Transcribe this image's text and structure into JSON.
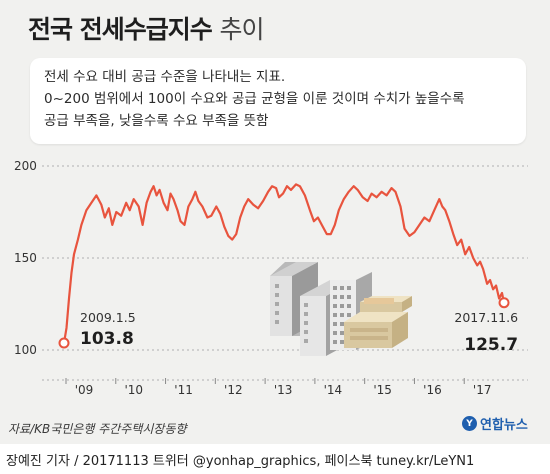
{
  "header": {
    "title_bold": "전국 전세수급지수",
    "title_light": "추이"
  },
  "note": {
    "lines": [
      "전세 수요 대비 공급 수준을 나타내는 지표.",
      "0~200 범위에서 100이 수요와 공급 균형을 이룬 것이며 수치가 높을수록",
      "공급 부족을, 낮을수록 수요 부족을 뜻함"
    ]
  },
  "source": "자료/KB국민은행 주간주택시장동향",
  "logo": {
    "mark": "Y",
    "name": "연합뉴스"
  },
  "footer": "장예진 기자 / 20171113 트위터 @yonhap_graphics, 페이스북 tuney.kr/LeYN1",
  "colors": {
    "line": "#e8543e",
    "grid": "#b0b0b0",
    "background": "#f1f1ef",
    "accent": "#1f5fae"
  },
  "chart_data": {
    "type": "line",
    "title": "전국 전세수급지수 추이",
    "xlabel": "",
    "ylabel": "",
    "ylim": [
      100,
      200
    ],
    "yticks": [
      100,
      150,
      200
    ],
    "xlim": [
      2009.0,
      2018.0
    ],
    "xticks": [
      {
        "x": 2009.0,
        "label": "'09"
      },
      {
        "x": 2010.0,
        "label": "'10"
      },
      {
        "x": 2011.0,
        "label": "'11"
      },
      {
        "x": 2012.0,
        "label": "'12"
      },
      {
        "x": 2013.0,
        "label": "'13"
      },
      {
        "x": 2014.0,
        "label": "'14"
      },
      {
        "x": 2015.0,
        "label": "'15"
      },
      {
        "x": 2016.0,
        "label": "'16"
      },
      {
        "x": 2017.0,
        "label": "'17"
      }
    ],
    "grid": "horizontal",
    "series": [
      {
        "points": [
          [
            2009.0,
            103.8
          ],
          [
            2009.05,
            112
          ],
          [
            2009.1,
            128
          ],
          [
            2009.15,
            142
          ],
          [
            2009.2,
            152
          ],
          [
            2009.28,
            160
          ],
          [
            2009.35,
            168
          ],
          [
            2009.45,
            176
          ],
          [
            2009.55,
            180
          ],
          [
            2009.65,
            184
          ],
          [
            2009.75,
            179
          ],
          [
            2009.82,
            172
          ],
          [
            2009.9,
            177
          ],
          [
            2009.97,
            168
          ],
          [
            2010.05,
            175
          ],
          [
            2010.15,
            173
          ],
          [
            2010.25,
            180
          ],
          [
            2010.32,
            176
          ],
          [
            2010.4,
            182
          ],
          [
            2010.5,
            178
          ],
          [
            2010.58,
            168
          ],
          [
            2010.66,
            180
          ],
          [
            2010.74,
            186
          ],
          [
            2010.8,
            189
          ],
          [
            2010.86,
            184
          ],
          [
            2010.92,
            187
          ],
          [
            2011.0,
            180
          ],
          [
            2011.08,
            176
          ],
          [
            2011.14,
            185
          ],
          [
            2011.2,
            182
          ],
          [
            2011.28,
            176
          ],
          [
            2011.34,
            170
          ],
          [
            2011.42,
            168
          ],
          [
            2011.5,
            178
          ],
          [
            2011.58,
            182
          ],
          [
            2011.64,
            186
          ],
          [
            2011.7,
            181
          ],
          [
            2011.78,
            178
          ],
          [
            2011.88,
            172
          ],
          [
            2011.96,
            173
          ],
          [
            2012.06,
            178
          ],
          [
            2012.14,
            174
          ],
          [
            2012.22,
            167
          ],
          [
            2012.3,
            162
          ],
          [
            2012.38,
            160
          ],
          [
            2012.46,
            163
          ],
          [
            2012.54,
            172
          ],
          [
            2012.62,
            178
          ],
          [
            2012.7,
            182
          ],
          [
            2012.8,
            179
          ],
          [
            2012.9,
            177
          ],
          [
            2013.0,
            181
          ],
          [
            2013.1,
            186
          ],
          [
            2013.18,
            189
          ],
          [
            2013.26,
            188
          ],
          [
            2013.32,
            183
          ],
          [
            2013.4,
            185
          ],
          [
            2013.48,
            189
          ],
          [
            2013.56,
            187
          ],
          [
            2013.66,
            190
          ],
          [
            2013.74,
            189
          ],
          [
            2013.84,
            184
          ],
          [
            2013.94,
            176
          ],
          [
            2014.02,
            170
          ],
          [
            2014.1,
            172
          ],
          [
            2014.18,
            168
          ],
          [
            2014.28,
            163
          ],
          [
            2014.36,
            163
          ],
          [
            2014.44,
            168
          ],
          [
            2014.52,
            176
          ],
          [
            2014.62,
            182
          ],
          [
            2014.72,
            186
          ],
          [
            2014.82,
            189
          ],
          [
            2014.9,
            187
          ],
          [
            2015.0,
            183
          ],
          [
            2015.1,
            181
          ],
          [
            2015.18,
            185
          ],
          [
            2015.28,
            183
          ],
          [
            2015.38,
            186
          ],
          [
            2015.48,
            184
          ],
          [
            2015.58,
            188
          ],
          [
            2015.66,
            186
          ],
          [
            2015.76,
            178
          ],
          [
            2015.84,
            166
          ],
          [
            2015.94,
            162
          ],
          [
            2016.04,
            164
          ],
          [
            2016.14,
            168
          ],
          [
            2016.24,
            172
          ],
          [
            2016.34,
            170
          ],
          [
            2016.44,
            176
          ],
          [
            2016.54,
            182
          ],
          [
            2016.6,
            178
          ],
          [
            2016.66,
            176
          ],
          [
            2016.74,
            170
          ],
          [
            2016.82,
            163
          ],
          [
            2016.9,
            157
          ],
          [
            2016.98,
            160
          ],
          [
            2017.06,
            152
          ],
          [
            2017.14,
            156
          ],
          [
            2017.22,
            150
          ],
          [
            2017.3,
            146
          ],
          [
            2017.36,
            148
          ],
          [
            2017.42,
            144
          ],
          [
            2017.5,
            136
          ],
          [
            2017.56,
            138
          ],
          [
            2017.62,
            133
          ],
          [
            2017.68,
            135
          ],
          [
            2017.74,
            128
          ],
          [
            2017.8,
            131
          ],
          [
            2017.84,
            125.7
          ]
        ]
      }
    ],
    "annotations": [
      {
        "date": "2009.1.5",
        "value": "103.8",
        "x": 2009.0,
        "y": 103.8
      },
      {
        "date": "2017.11.6",
        "value": "125.7",
        "x": 2017.84,
        "y": 125.7
      }
    ]
  }
}
